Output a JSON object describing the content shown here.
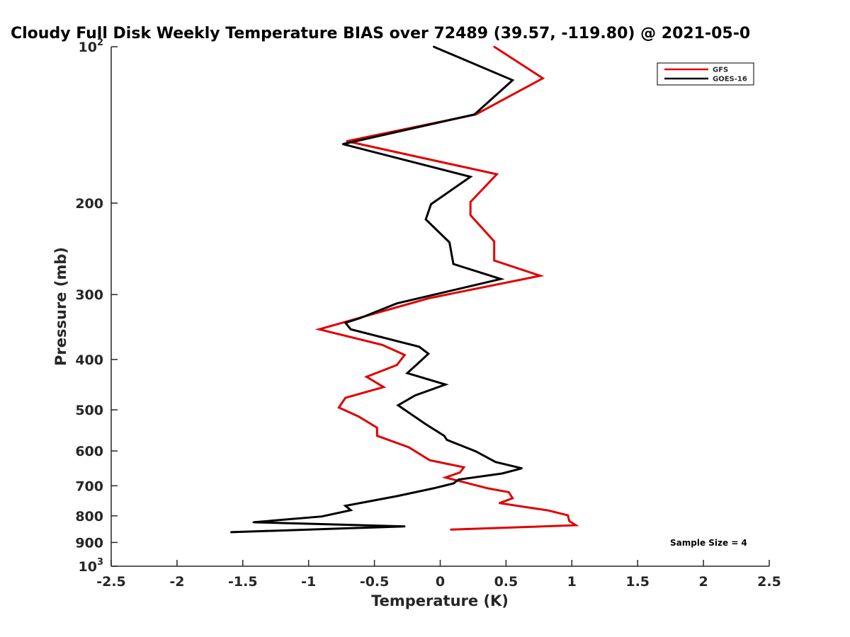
{
  "chart_data": {
    "type": "line",
    "title": "Cloudy Full Disk Weekly Temperature BIAS over 72489 (39.57, -119.80) @ 2021-05-0",
    "xlabel": "Temperature (K)",
    "ylabel": "Pressure (mb)",
    "xlim": [
      -2.5,
      2.5
    ],
    "ylim": [
      100,
      1000
    ],
    "yscale": "log",
    "y_reversed": true,
    "x_ticks": [
      "-2.5",
      "-2",
      "-1.5",
      "-1",
      "-0.5",
      "0",
      "0.5",
      "1",
      "1.5",
      "2",
      "2.5"
    ],
    "y_ticks": [
      {
        "value": 100,
        "base": "10",
        "exp": "2"
      },
      {
        "value": 200,
        "base": "200",
        "exp": ""
      },
      {
        "value": 300,
        "base": "300",
        "exp": ""
      },
      {
        "value": 400,
        "base": "400",
        "exp": ""
      },
      {
        "value": 500,
        "base": "500",
        "exp": ""
      },
      {
        "value": 600,
        "base": "600",
        "exp": ""
      },
      {
        "value": 700,
        "base": "700",
        "exp": ""
      },
      {
        "value": 800,
        "base": "800",
        "exp": ""
      },
      {
        "value": 900,
        "base": "900",
        "exp": ""
      },
      {
        "value": 1000,
        "base": "10",
        "exp": "3"
      }
    ],
    "grid": false,
    "legend_position": "top-right",
    "annotation": "Sample Size = 4",
    "series": [
      {
        "name": "GFS",
        "color": "#e00000",
        "points": [
          [
            0.41,
            100
          ],
          [
            0.78,
            115
          ],
          [
            0.27,
            135
          ],
          [
            -0.71,
            152
          ],
          [
            0.43,
            176
          ],
          [
            0.23,
            199
          ],
          [
            0.23,
            211
          ],
          [
            0.41,
            237
          ],
          [
            0.41,
            258
          ],
          [
            0.76,
            276
          ],
          [
            -0.09,
            305
          ],
          [
            -0.92,
            350
          ],
          [
            -0.44,
            375
          ],
          [
            -0.27,
            392
          ],
          [
            -0.33,
            410
          ],
          [
            -0.56,
            432
          ],
          [
            -0.43,
            452
          ],
          [
            -0.72,
            474
          ],
          [
            -0.77,
            495
          ],
          [
            -0.62,
            515
          ],
          [
            -0.48,
            541
          ],
          [
            -0.48,
            561
          ],
          [
            -0.24,
            590
          ],
          [
            -0.08,
            625
          ],
          [
            0.18,
            645
          ],
          [
            0.15,
            660
          ],
          [
            0.04,
            675
          ],
          [
            0.17,
            688
          ],
          [
            0.36,
            708
          ],
          [
            0.52,
            720
          ],
          [
            0.55,
            740
          ],
          [
            0.45,
            756
          ],
          [
            0.82,
            781
          ],
          [
            0.97,
            798
          ],
          [
            0.98,
            818
          ],
          [
            1.03,
            834
          ],
          [
            0.08,
            850
          ]
        ]
      },
      {
        "name": "GOES-16",
        "color": "#000000",
        "points": [
          [
            -0.05,
            100
          ],
          [
            0.55,
            116
          ],
          [
            0.26,
            135
          ],
          [
            -0.74,
            154
          ],
          [
            0.23,
            178
          ],
          [
            -0.07,
            201
          ],
          [
            -0.11,
            215
          ],
          [
            0.07,
            238
          ],
          [
            0.1,
            262
          ],
          [
            0.46,
            280
          ],
          [
            -0.33,
            312
          ],
          [
            -0.61,
            333
          ],
          [
            -0.72,
            340
          ],
          [
            -0.68,
            350
          ],
          [
            -0.16,
            378
          ],
          [
            -0.09,
            390
          ],
          [
            -0.16,
            405
          ],
          [
            -0.25,
            425
          ],
          [
            0.04,
            447
          ],
          [
            -0.19,
            469
          ],
          [
            -0.32,
            490
          ],
          [
            -0.11,
            533
          ],
          [
            0.03,
            561
          ],
          [
            0.05,
            571
          ],
          [
            0.27,
            601
          ],
          [
            0.42,
            630
          ],
          [
            0.62,
            648
          ],
          [
            0.47,
            663
          ],
          [
            0.14,
            681
          ],
          [
            0.1,
            693
          ],
          [
            -0.05,
            708
          ],
          [
            -0.33,
            733
          ],
          [
            -0.72,
            765
          ],
          [
            -0.68,
            780
          ],
          [
            -0.9,
            802
          ],
          [
            -1.42,
            823
          ],
          [
            -0.27,
            838
          ],
          [
            -1.59,
            860
          ]
        ]
      }
    ]
  }
}
